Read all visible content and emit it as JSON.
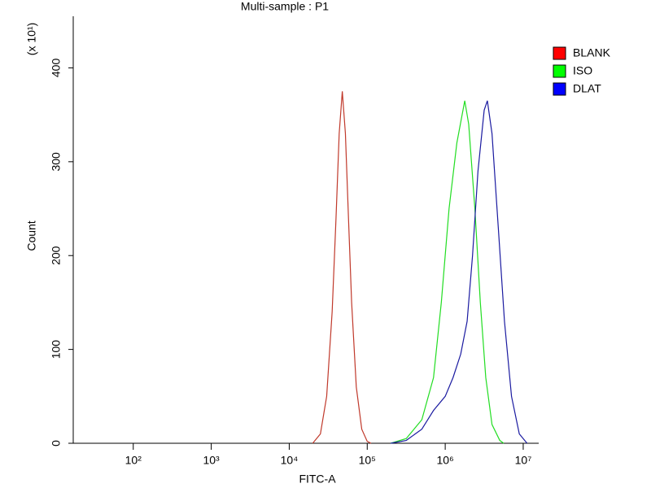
{
  "chart_data": {
    "type": "line",
    "title": "Multi-sample : P1",
    "xlabel": "FITC-A",
    "ylabel": "Count",
    "y_multiplier": "(x 10¹)",
    "xscale": "log",
    "legend": "right",
    "xlim": [
      17,
      15800000
    ],
    "ylim": [
      0,
      455
    ],
    "xticks": [
      {
        "value": 100,
        "label": "10²"
      },
      {
        "value": 1000,
        "label": "10³"
      },
      {
        "value": 10000,
        "label": "10⁴"
      },
      {
        "value": 100000,
        "label": "10⁵"
      },
      {
        "value": 1000000,
        "label": "10⁶"
      },
      {
        "value": 10000000,
        "label": "10⁷"
      }
    ],
    "yticks": [
      0,
      100,
      200,
      300,
      400
    ],
    "series": [
      {
        "name": "BLANK",
        "color": "#c0392b",
        "legend_color": "#ff0000",
        "x": [
          20000,
          25100,
          30200,
          35500,
          39800,
          43700,
          47900,
          52500,
          57500,
          63100,
          72400,
          85100,
          100000,
          112000
        ],
        "values": [
          0,
          10,
          50,
          140,
          240,
          330,
          375,
          330,
          240,
          150,
          60,
          15,
          2,
          0
        ]
      },
      {
        "name": "ISO",
        "color": "#22dd22",
        "legend_color": "#00ff00",
        "x": [
          200000,
          316000,
          501000,
          708000,
          891000,
          1120000,
          1410000,
          1780000,
          2000000,
          2400000,
          2820000,
          3310000,
          3980000,
          5010000,
          5620000
        ],
        "values": [
          0,
          5,
          25,
          70,
          150,
          250,
          320,
          365,
          340,
          250,
          150,
          70,
          20,
          3,
          0
        ]
      },
      {
        "name": "DLAT",
        "color": "#1a1aa0",
        "legend_color": "#0000ff",
        "x": [
          200000,
          316000,
          501000,
          708000,
          1000000,
          1260000,
          1580000,
          1910000,
          2240000,
          2630000,
          3160000,
          3470000,
          3980000,
          4790000,
          5750000,
          7080000,
          8910000,
          11200000
        ],
        "values": [
          0,
          3,
          15,
          35,
          50,
          70,
          95,
          130,
          200,
          290,
          355,
          365,
          330,
          230,
          130,
          50,
          10,
          0
        ]
      }
    ]
  }
}
